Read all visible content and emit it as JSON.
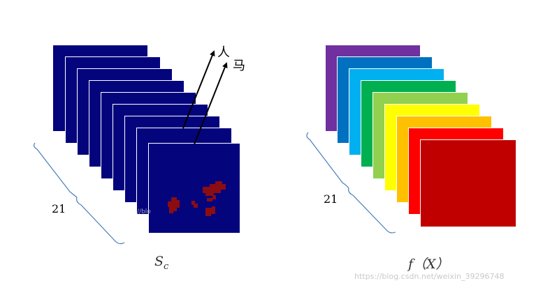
{
  "left_panel": {
    "count_label": "21",
    "arrow_labels": {
      "person": "人",
      "horse": "马"
    },
    "caption": {
      "base": "S",
      "sub": "c"
    },
    "layer_color": "#04047d",
    "heatmap_color": "#8b0d12",
    "partial_text": "//blo"
  },
  "right_panel": {
    "count_label": "21",
    "caption": "f（X）",
    "layer_colors": [
      "#7030a0",
      "#0070c0",
      "#00b0f0",
      "#00b050",
      "#92d050",
      "#ffff00",
      "#ffc000",
      "#ff0000",
      "#c00000"
    ]
  },
  "watermark": "https://blog.csdn.net/weixin_39296748",
  "brace_color": "#4a7ebb"
}
